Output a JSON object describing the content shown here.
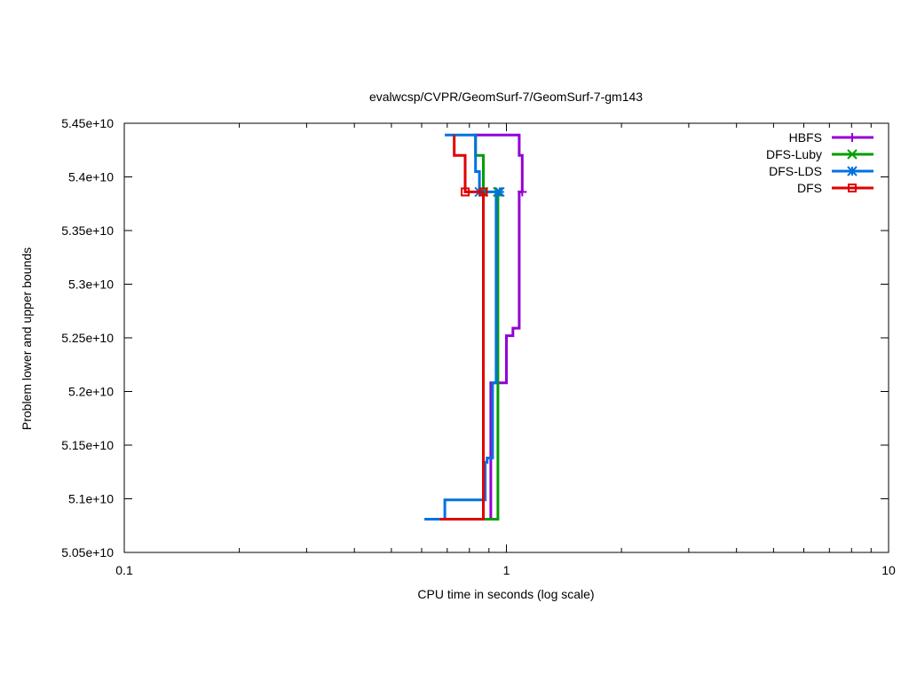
{
  "chart_data": {
    "type": "line",
    "title": "evalwcsp/CVPR/GeomSurf-7/GeomSurf-7-gm143",
    "xlabel": "CPU time in seconds (log scale)",
    "ylabel": "Problem lower and upper bounds",
    "x_scale": "log",
    "xlim": [
      0.1,
      10
    ],
    "ylim": [
      50500000000.0,
      54500000000.0
    ],
    "x_ticks": [
      {
        "value": 0.1,
        "label": "0.1"
      },
      {
        "value": 1,
        "label": "1"
      },
      {
        "value": 10,
        "label": "10"
      }
    ],
    "y_ticks": [
      {
        "value": 50500000000.0,
        "label": "5.05e+10"
      },
      {
        "value": 51000000000.0,
        "label": "5.1e+10"
      },
      {
        "value": 51500000000.0,
        "label": "5.15e+10"
      },
      {
        "value": 52000000000.0,
        "label": "5.2e+10"
      },
      {
        "value": 52500000000.0,
        "label": "5.25e+10"
      },
      {
        "value": 53000000000.0,
        "label": "5.3e+10"
      },
      {
        "value": 53500000000.0,
        "label": "5.35e+10"
      },
      {
        "value": 54000000000.0,
        "label": "5.4e+10"
      },
      {
        "value": 54500000000.0,
        "label": "5.45e+10"
      }
    ],
    "legend_position": "top-right",
    "grid": false,
    "series": [
      {
        "name": "HBFS",
        "color": "#9400d3",
        "marker": "plus",
        "upper": [
          [
            0.83,
            54390000000.0
          ],
          [
            1.08,
            54390000000.0
          ],
          [
            1.08,
            54200000000.0
          ],
          [
            1.1,
            54200000000.0
          ],
          [
            1.1,
            53860000000.0
          ]
        ],
        "lower": [
          [
            0.82,
            50810000000.0
          ],
          [
            0.91,
            50810000000.0
          ],
          [
            0.91,
            52080000000.0
          ],
          [
            1.0,
            52080000000.0
          ],
          [
            1.0,
            52520000000.0
          ],
          [
            1.04,
            52520000000.0
          ],
          [
            1.04,
            52590000000.0
          ],
          [
            1.08,
            52590000000.0
          ],
          [
            1.08,
            53860000000.0
          ],
          [
            1.1,
            53860000000.0
          ]
        ],
        "marker_points": [
          [
            1.1,
            53860000000.0
          ]
        ]
      },
      {
        "name": "DFS-Luby",
        "color": "#009e00",
        "marker": "x",
        "upper": [
          [
            0.82,
            54390000000.0
          ],
          [
            0.83,
            54390000000.0
          ],
          [
            0.83,
            54200000000.0
          ],
          [
            0.87,
            54200000000.0
          ],
          [
            0.87,
            53860000000.0
          ]
        ],
        "lower": [
          [
            0.82,
            50810000000.0
          ],
          [
            0.95,
            50810000000.0
          ],
          [
            0.95,
            53860000000.0
          ]
        ],
        "marker_points": [
          [
            0.87,
            53860000000.0
          ],
          [
            0.95,
            53860000000.0
          ]
        ]
      },
      {
        "name": "DFS-LDS",
        "color": "#0072e0",
        "marker": "star",
        "upper": [
          [
            0.69,
            54390000000.0
          ],
          [
            0.83,
            54390000000.0
          ],
          [
            0.83,
            54050000000.0
          ],
          [
            0.85,
            54050000000.0
          ],
          [
            0.85,
            53860000000.0
          ],
          [
            0.96,
            53860000000.0
          ]
        ],
        "lower": [
          [
            0.61,
            50810000000.0
          ],
          [
            0.69,
            50810000000.0
          ],
          [
            0.69,
            50990000000.0
          ],
          [
            0.88,
            50990000000.0
          ],
          [
            0.88,
            51340000000.0
          ],
          [
            0.89,
            51340000000.0
          ],
          [
            0.89,
            51380000000.0
          ],
          [
            0.92,
            51380000000.0
          ],
          [
            0.92,
            52080000000.0
          ],
          [
            0.94,
            52080000000.0
          ],
          [
            0.94,
            53860000000.0
          ],
          [
            0.96,
            53860000000.0
          ]
        ],
        "marker_points": [
          [
            0.85,
            53860000000.0
          ],
          [
            0.96,
            53860000000.0
          ]
        ]
      },
      {
        "name": "DFS",
        "color": "#e00000",
        "marker": "square",
        "upper": [
          [
            0.73,
            54390000000.0
          ],
          [
            0.73,
            54200000000.0
          ],
          [
            0.78,
            54200000000.0
          ],
          [
            0.78,
            53860000000.0
          ],
          [
            0.87,
            53860000000.0
          ]
        ],
        "lower": [
          [
            0.67,
            50810000000.0
          ],
          [
            0.87,
            50810000000.0
          ],
          [
            0.87,
            53860000000.0
          ]
        ],
        "marker_points": [
          [
            0.78,
            53860000000.0
          ],
          [
            0.87,
            53860000000.0
          ]
        ]
      }
    ]
  }
}
